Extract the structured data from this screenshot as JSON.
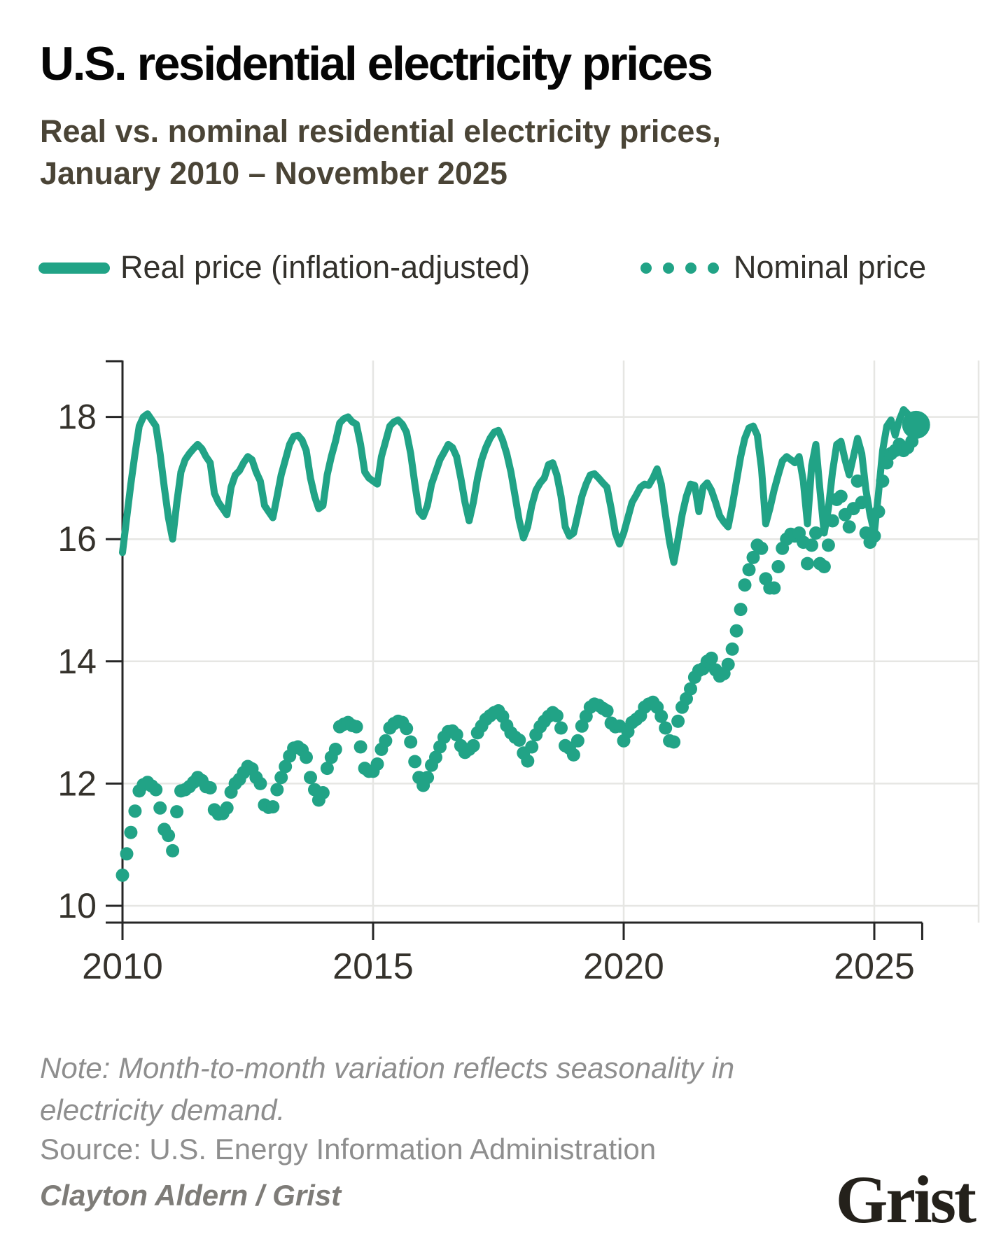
{
  "header": {
    "title": "U.S. residential electricity prices",
    "subtitle_line1": "Real vs. nominal residential electricity prices,",
    "subtitle_line2": "January 2010 – November 2025"
  },
  "legend": {
    "real_label": "Real price (inflation-adjusted)",
    "nominal_label": "Nominal price"
  },
  "footer": {
    "note_line1": "Note: Month-to-month variation reflects seasonality in",
    "note_line2": "electricity demand.",
    "source": "Source: U.S. Energy Information Administration",
    "credit": "Clayton Aldern / Grist",
    "logo": "Grist"
  },
  "colors": {
    "series_teal": "#21A386",
    "grid": "#e6e6e3",
    "axis": "#262626",
    "tick_label": "#35322c",
    "title": "#050505",
    "subtitle": "#4a4436",
    "muted_text": "#8e8e8e"
  },
  "chart_data": {
    "type": "line",
    "title": "U.S. residential electricity prices",
    "subtitle": "Real vs. nominal residential electricity prices, January 2010 – November 2025",
    "unit": "cents (as plotted on axis, 10–18)",
    "frequency": "monthly",
    "start": "2010-01",
    "end": "2025-11",
    "x_axis": {
      "ticks": [
        2010,
        2015,
        2020,
        2025
      ],
      "gridline_years": [
        2015,
        2020,
        2025
      ],
      "range": [
        2010.0,
        2025.92
      ]
    },
    "y_axis": {
      "ticks": [
        10,
        12,
        14,
        16,
        18
      ],
      "range": [
        10,
        18
      ],
      "grid": true
    },
    "legend_position": "top",
    "end_marker": {
      "date": "2025-11",
      "value": 17.87,
      "series": "both"
    },
    "series": [
      {
        "name": "Real price (inflation-adjusted)",
        "style": "solid-line",
        "values": [
          15.78,
          16.35,
          16.9,
          17.4,
          17.85,
          18.0,
          18.05,
          17.95,
          17.85,
          17.4,
          16.85,
          16.35,
          16.0,
          16.6,
          17.1,
          17.3,
          17.4,
          17.48,
          17.55,
          17.48,
          17.35,
          17.25,
          16.75,
          16.6,
          16.5,
          16.4,
          16.85,
          17.05,
          17.12,
          17.25,
          17.35,
          17.3,
          17.1,
          16.95,
          16.55,
          16.45,
          16.35,
          16.7,
          17.05,
          17.3,
          17.55,
          17.68,
          17.7,
          17.62,
          17.45,
          17.0,
          16.7,
          16.5,
          16.55,
          17.05,
          17.35,
          17.6,
          17.9,
          17.97,
          18.0,
          17.92,
          17.88,
          17.55,
          17.1,
          17.0,
          16.95,
          16.9,
          17.35,
          17.6,
          17.85,
          17.92,
          17.95,
          17.88,
          17.75,
          17.4,
          16.9,
          16.45,
          16.37,
          16.55,
          16.9,
          17.1,
          17.3,
          17.42,
          17.55,
          17.5,
          17.35,
          17.0,
          16.6,
          16.3,
          16.6,
          17.0,
          17.3,
          17.5,
          17.65,
          17.75,
          17.78,
          17.62,
          17.4,
          17.1,
          16.7,
          16.3,
          16.02,
          16.2,
          16.55,
          16.8,
          16.92,
          17.0,
          17.22,
          17.25,
          17.05,
          16.7,
          16.2,
          16.05,
          16.1,
          16.4,
          16.7,
          16.9,
          17.05,
          17.07,
          17.0,
          16.92,
          16.85,
          16.5,
          16.1,
          15.92,
          16.1,
          16.35,
          16.6,
          16.72,
          16.85,
          16.9,
          16.88,
          17.0,
          17.15,
          16.9,
          16.4,
          15.95,
          15.62,
          16.0,
          16.4,
          16.7,
          16.9,
          16.88,
          16.45,
          16.85,
          16.92,
          16.8,
          16.6,
          16.38,
          16.28,
          16.2,
          16.55,
          16.95,
          17.35,
          17.65,
          17.82,
          17.85,
          17.7,
          17.15,
          16.25,
          16.5,
          16.8,
          17.05,
          17.28,
          17.35,
          17.3,
          17.25,
          17.35,
          16.95,
          16.25,
          17.2,
          17.55,
          16.8,
          16.1,
          16.5,
          17.1,
          17.55,
          17.6,
          17.3,
          17.05,
          17.35,
          17.65,
          17.4,
          16.8,
          16.4,
          16.1,
          16.75,
          17.45,
          17.85,
          17.95,
          17.7,
          17.95,
          18.12,
          18.05,
          17.92,
          17.87
        ]
      },
      {
        "name": "Nominal price",
        "style": "dots",
        "values": [
          10.5,
          10.85,
          11.2,
          11.55,
          11.88,
          11.98,
          12.02,
          11.96,
          11.9,
          11.6,
          11.25,
          11.15,
          10.9,
          11.54,
          11.88,
          11.9,
          11.95,
          12.02,
          12.1,
          12.05,
          11.95,
          11.93,
          11.57,
          11.5,
          11.51,
          11.6,
          11.86,
          12.0,
          12.07,
          12.18,
          12.28,
          12.24,
          12.1,
          12.0,
          11.65,
          11.61,
          11.62,
          11.9,
          12.1,
          12.28,
          12.45,
          12.58,
          12.6,
          12.55,
          12.43,
          12.1,
          11.9,
          11.73,
          11.85,
          12.25,
          12.43,
          12.56,
          12.93,
          12.97,
          13.0,
          12.95,
          12.93,
          12.6,
          12.25,
          12.2,
          12.2,
          12.32,
          12.56,
          12.7,
          12.91,
          12.98,
          13.02,
          13.0,
          12.9,
          12.68,
          12.36,
          12.1,
          11.97,
          12.1,
          12.3,
          12.43,
          12.6,
          12.76,
          12.85,
          12.86,
          12.8,
          12.62,
          12.51,
          12.56,
          12.62,
          12.83,
          12.94,
          13.05,
          13.11,
          13.16,
          13.19,
          13.1,
          12.95,
          12.83,
          12.76,
          12.71,
          12.5,
          12.37,
          12.6,
          12.8,
          12.93,
          13.02,
          13.1,
          13.16,
          13.11,
          12.91,
          12.62,
          12.58,
          12.47,
          12.7,
          12.94,
          13.1,
          13.25,
          13.3,
          13.28,
          13.23,
          13.19,
          12.99,
          12.93,
          12.94,
          12.7,
          12.85,
          13.0,
          13.05,
          13.11,
          13.25,
          13.3,
          13.33,
          13.25,
          13.1,
          12.91,
          12.7,
          12.68,
          13.02,
          13.25,
          13.39,
          13.55,
          13.74,
          13.85,
          13.88,
          14.0,
          14.05,
          13.86,
          13.76,
          13.8,
          13.95,
          14.2,
          14.5,
          14.85,
          15.25,
          15.5,
          15.7,
          15.9,
          15.85,
          15.35,
          15.2,
          15.2,
          15.55,
          15.85,
          16.0,
          16.08,
          16.05,
          16.1,
          15.95,
          15.6,
          15.9,
          16.1,
          15.6,
          15.55,
          15.9,
          16.3,
          16.65,
          16.7,
          16.4,
          16.2,
          16.5,
          16.95,
          16.6,
          16.1,
          15.95,
          16.05,
          16.45,
          16.95,
          17.25,
          17.4,
          17.45,
          17.55,
          17.45,
          17.5,
          17.6,
          17.87
        ]
      }
    ]
  }
}
